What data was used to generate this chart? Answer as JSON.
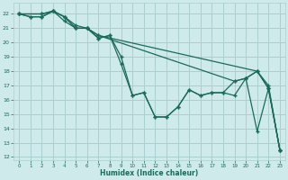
{
  "xlabel": "Humidex (Indice chaleur)",
  "bg_color": "#ceeaea",
  "grid_color": "#aacfcf",
  "line_color": "#1a6b5a",
  "marker": "+",
  "xlim": [
    -0.5,
    23.5
  ],
  "ylim": [
    11.8,
    22.8
  ],
  "yticks": [
    12,
    13,
    14,
    15,
    16,
    17,
    18,
    19,
    20,
    21,
    22
  ],
  "xticks": [
    0,
    1,
    2,
    3,
    4,
    5,
    6,
    7,
    8,
    9,
    10,
    11,
    12,
    13,
    14,
    15,
    16,
    17,
    18,
    19,
    20,
    21,
    22,
    23
  ],
  "series1_x": [
    0,
    1,
    2,
    3,
    4,
    5,
    6,
    7,
    8,
    9,
    10,
    11,
    12,
    13,
    14,
    15,
    16,
    17,
    18,
    19,
    20,
    21,
    22,
    23
  ],
  "series1_y": [
    22,
    21.8,
    21.8,
    22.2,
    21.8,
    21.0,
    21.0,
    20.3,
    20.5,
    19.0,
    16.3,
    16.5,
    14.8,
    14.8,
    15.5,
    16.7,
    16.3,
    16.5,
    16.5,
    16.3,
    17.5,
    18.0,
    16.8,
    12.5
  ],
  "series2_x": [
    0,
    1,
    2,
    3,
    4,
    5,
    6,
    7,
    8,
    9,
    10,
    11,
    12,
    13,
    14,
    15,
    16,
    17,
    18,
    19,
    20,
    21,
    22,
    23
  ],
  "series2_y": [
    22,
    21.8,
    21.8,
    22.2,
    21.8,
    21.0,
    21.0,
    20.3,
    20.5,
    18.5,
    16.3,
    16.5,
    14.8,
    14.8,
    15.5,
    16.7,
    16.3,
    16.5,
    16.5,
    17.3,
    17.5,
    13.8,
    16.8,
    12.5
  ],
  "series3_x": [
    0,
    2,
    3,
    4,
    5,
    6,
    7,
    21,
    22,
    23
  ],
  "series3_y": [
    22,
    22,
    22.2,
    21.8,
    21.2,
    21.0,
    20.5,
    18.0,
    17.0,
    12.5
  ],
  "series4_x": [
    0,
    2,
    3,
    4,
    5,
    6,
    7,
    19,
    20,
    21,
    22,
    23
  ],
  "series4_y": [
    22,
    22,
    22.2,
    21.5,
    21.0,
    21.0,
    20.5,
    17.3,
    17.5,
    18.0,
    16.8,
    12.5
  ]
}
